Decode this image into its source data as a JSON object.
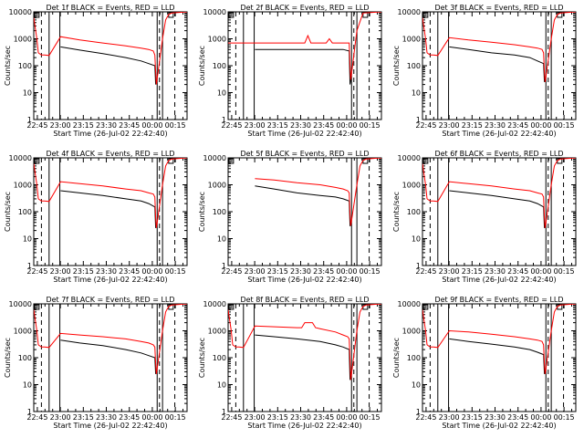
{
  "figure": {
    "ylabel": "Counts/sec",
    "xlabel": "Start Time (26-Jul-02 22:42:40)",
    "x_tick_labels": [
      "22:45",
      "23:00",
      "23:15",
      "23:30",
      "23:45",
      "00:00",
      "00:15"
    ],
    "y_tick_labels": [
      "1",
      "10",
      "100",
      "1000",
      "10000"
    ],
    "colors": {
      "events": "#000000",
      "lld": "#ff0000"
    }
  },
  "chart_data": [
    {
      "type": "line",
      "title": "Det 1f BLACK = Events, RED = LLD",
      "detector": "1f",
      "ylim": [
        1,
        10000
      ],
      "yscale": "log",
      "xlim_minutes": [
        0,
        100
      ],
      "gaps_minutes": [
        [
          10,
          17
        ],
        [
          80.5,
          84
        ]
      ],
      "dashed_minutes": [
        5,
        82,
        92
      ],
      "series": [
        {
          "name": "Events",
          "x": [
            17.5,
            30,
            45,
            60,
            70,
            75,
            79,
            79.5,
            80
          ],
          "y": [
            500,
            380,
            280,
            200,
            150,
            120,
            100,
            20,
            30
          ]
        },
        {
          "name": "LLD",
          "x": [
            0,
            1,
            2,
            3,
            5,
            7,
            10,
            17.5,
            30,
            45,
            60,
            70,
            75,
            78,
            79,
            79.5,
            80,
            84,
            86,
            88,
            90,
            100
          ],
          "y": [
            6000,
            2500,
            1000,
            300,
            250,
            250,
            240,
            1200,
            900,
            700,
            550,
            450,
            400,
            350,
            250,
            60,
            20,
            1000,
            5000,
            8000,
            9000,
            10000
          ]
        }
      ]
    },
    {
      "type": "line",
      "title": "Det 2f BLACK = Events, RED = LLD",
      "detector": "2f",
      "ylim": [
        1,
        10000
      ],
      "yscale": "log",
      "xlim_minutes": [
        0,
        100
      ],
      "gaps_minutes": [
        [
          10,
          17
        ],
        [
          80.5,
          84
        ]
      ],
      "dashed_minutes": [
        5,
        82,
        92
      ],
      "series": [
        {
          "name": "Events",
          "x": [
            17.5,
            30,
            45,
            60,
            70,
            75,
            79,
            79.5,
            80
          ],
          "y": [
            400,
            400,
            400,
            400,
            400,
            400,
            350,
            20,
            30
          ]
        },
        {
          "name": "LLD",
          "x": [
            0,
            5,
            10,
            17.5,
            45,
            50,
            52,
            54,
            60,
            64,
            66,
            68,
            79,
            79.5,
            80,
            84,
            88,
            100
          ],
          "y": [
            700,
            700,
            700,
            700,
            700,
            700,
            1300,
            700,
            700,
            700,
            1000,
            700,
            700,
            100,
            30,
            2000,
            9000,
            10000
          ]
        }
      ]
    },
    {
      "type": "line",
      "title": "Det 3f BLACK = Events, RED = LLD",
      "detector": "3f",
      "ylim": [
        1,
        10000
      ],
      "yscale": "log",
      "xlim_minutes": [
        0,
        100
      ],
      "gaps_minutes": [
        [
          10,
          17
        ],
        [
          80.5,
          84
        ]
      ],
      "dashed_minutes": [
        5,
        82,
        92
      ],
      "series": [
        {
          "name": "Events",
          "x": [
            17.5,
            30,
            45,
            60,
            70,
            75,
            79,
            79.5,
            80
          ],
          "y": [
            500,
            400,
            300,
            250,
            200,
            150,
            120,
            25,
            30
          ]
        },
        {
          "name": "LLD",
          "x": [
            0,
            1,
            2,
            3,
            5,
            7,
            10,
            17.5,
            30,
            45,
            60,
            70,
            75,
            78,
            79,
            79.5,
            80,
            84,
            86,
            88,
            90,
            100
          ],
          "y": [
            6000,
            2500,
            1000,
            300,
            250,
            250,
            240,
            1100,
            900,
            750,
            600,
            500,
            450,
            400,
            300,
            60,
            25,
            1000,
            5000,
            8000,
            9000,
            10000
          ]
        }
      ]
    },
    {
      "type": "line",
      "title": "Det 4f BLACK = Events, RED = LLD",
      "detector": "4f",
      "ylim": [
        1,
        10000
      ],
      "yscale": "log",
      "xlim_minutes": [
        0,
        100
      ],
      "gaps_minutes": [
        [
          10,
          17
        ],
        [
          80.5,
          84
        ]
      ],
      "dashed_minutes": [
        5,
        82,
        92
      ],
      "series": [
        {
          "name": "Events",
          "x": [
            17.5,
            30,
            45,
            60,
            70,
            75,
            79,
            79.5,
            80
          ],
          "y": [
            600,
            500,
            400,
            300,
            250,
            200,
            150,
            25,
            30
          ]
        },
        {
          "name": "LLD",
          "x": [
            0,
            1,
            2,
            3,
            5,
            7,
            10,
            17.5,
            30,
            45,
            60,
            70,
            75,
            78,
            79,
            79.5,
            80,
            84,
            86,
            88,
            90,
            100
          ],
          "y": [
            6000,
            2500,
            1000,
            300,
            250,
            250,
            240,
            1300,
            1100,
            900,
            700,
            600,
            500,
            450,
            350,
            60,
            25,
            1000,
            5000,
            8000,
            9000,
            10000
          ]
        }
      ]
    },
    {
      "type": "line",
      "title": "Det 5f BLACK = Events, RED = LLD",
      "detector": "5f",
      "ylim": [
        1,
        10000
      ],
      "yscale": "log",
      "xlim_minutes": [
        0,
        100
      ],
      "gaps_minutes": [
        [
          80.5,
          84
        ]
      ],
      "dashed_minutes": [
        92
      ],
      "series": [
        {
          "name": "Events",
          "x": [
            17.5,
            30,
            45,
            60,
            70,
            75,
            79,
            79.5,
            80
          ],
          "y": [
            900,
            700,
            500,
            400,
            350,
            300,
            250,
            30,
            30
          ]
        },
        {
          "name": "LLD",
          "x": [
            17.5,
            30,
            45,
            60,
            70,
            75,
            78,
            79,
            79.5,
            80,
            84,
            86,
            88,
            90,
            100
          ],
          "y": [
            1700,
            1500,
            1200,
            1000,
            800,
            700,
            600,
            500,
            80,
            30,
            1000,
            5000,
            8000,
            9000,
            10000
          ]
        }
      ]
    },
    {
      "type": "line",
      "title": "Det 6f BLACK = Events, RED = LLD",
      "detector": "6f",
      "ylim": [
        1,
        10000
      ],
      "yscale": "log",
      "xlim_minutes": [
        0,
        100
      ],
      "gaps_minutes": [
        [
          10,
          17
        ],
        [
          80.5,
          84
        ]
      ],
      "dashed_minutes": [
        5,
        82,
        92
      ],
      "series": [
        {
          "name": "Events",
          "x": [
            17.5,
            30,
            45,
            60,
            70,
            75,
            79,
            79.5,
            80
          ],
          "y": [
            600,
            500,
            400,
            300,
            250,
            200,
            150,
            25,
            30
          ]
        },
        {
          "name": "LLD",
          "x": [
            0,
            1,
            2,
            3,
            5,
            7,
            10,
            17.5,
            30,
            45,
            60,
            70,
            75,
            78,
            79,
            79.5,
            80,
            84,
            86,
            88,
            90,
            100
          ],
          "y": [
            6000,
            2500,
            1000,
            300,
            250,
            250,
            240,
            1300,
            1100,
            900,
            700,
            600,
            500,
            450,
            350,
            60,
            25,
            1000,
            5000,
            8000,
            9000,
            10000
          ]
        }
      ]
    },
    {
      "type": "line",
      "title": "Det 7f BLACK = Events, RED = LLD",
      "detector": "7f",
      "ylim": [
        1,
        10000
      ],
      "yscale": "log",
      "xlim_minutes": [
        0,
        100
      ],
      "gaps_minutes": [
        [
          10,
          17
        ],
        [
          80.5,
          84
        ]
      ],
      "dashed_minutes": [
        5,
        82,
        92
      ],
      "series": [
        {
          "name": "Events",
          "x": [
            17.5,
            30,
            45,
            60,
            70,
            75,
            79,
            79.5,
            80
          ],
          "y": [
            450,
            350,
            280,
            200,
            150,
            120,
            100,
            25,
            30
          ]
        },
        {
          "name": "LLD",
          "x": [
            0,
            1,
            2,
            3,
            5,
            7,
            10,
            17.5,
            30,
            45,
            60,
            70,
            75,
            78,
            79,
            79.5,
            80,
            84,
            86,
            88,
            90,
            100
          ],
          "y": [
            6000,
            2500,
            1000,
            300,
            250,
            250,
            240,
            800,
            700,
            600,
            500,
            400,
            350,
            300,
            250,
            60,
            25,
            1000,
            5000,
            8000,
            9000,
            10000
          ]
        }
      ]
    },
    {
      "type": "line",
      "title": "Det 8f BLACK = Events, RED = LLD",
      "detector": "8f",
      "ylim": [
        1,
        10000
      ],
      "yscale": "log",
      "xlim_minutes": [
        0,
        100
      ],
      "gaps_minutes": [
        [
          10,
          17
        ],
        [
          80.5,
          84
        ]
      ],
      "dashed_minutes": [
        5,
        82,
        92
      ],
      "series": [
        {
          "name": "Events",
          "x": [
            17.5,
            30,
            45,
            60,
            70,
            75,
            79,
            79.5,
            80
          ],
          "y": [
            700,
            600,
            500,
            400,
            300,
            250,
            200,
            15,
            30
          ]
        },
        {
          "name": "LLD",
          "x": [
            0,
            1,
            2,
            3,
            5,
            7,
            10,
            17.5,
            45,
            48,
            50,
            55,
            57,
            60,
            70,
            75,
            78,
            79,
            79.5,
            80,
            84,
            86,
            88,
            90,
            100
          ],
          "y": [
            6000,
            2500,
            1000,
            300,
            250,
            250,
            240,
            1500,
            1300,
            1300,
            2000,
            2000,
            1300,
            1200,
            900,
            700,
            600,
            500,
            80,
            15,
            1000,
            5000,
            8000,
            9000,
            10000
          ]
        }
      ]
    },
    {
      "type": "line",
      "title": "Det 9f BLACK = Events, RED = LLD",
      "detector": "9f",
      "ylim": [
        1,
        10000
      ],
      "yscale": "log",
      "xlim_minutes": [
        0,
        100
      ],
      "gaps_minutes": [
        [
          10,
          17
        ],
        [
          80.5,
          84
        ]
      ],
      "dashed_minutes": [
        5,
        82,
        92
      ],
      "series": [
        {
          "name": "Events",
          "x": [
            17.5,
            30,
            45,
            60,
            70,
            75,
            79,
            79.5,
            80
          ],
          "y": [
            500,
            400,
            320,
            250,
            200,
            160,
            130,
            25,
            30
          ]
        },
        {
          "name": "LLD",
          "x": [
            0,
            1,
            2,
            3,
            5,
            7,
            10,
            17.5,
            30,
            45,
            60,
            70,
            75,
            78,
            79,
            79.5,
            80,
            84,
            86,
            88,
            90,
            100
          ],
          "y": [
            6000,
            2500,
            1000,
            300,
            250,
            250,
            240,
            1000,
            900,
            750,
            600,
            500,
            450,
            400,
            300,
            60,
            25,
            1000,
            5000,
            8000,
            9000,
            10000
          ]
        }
      ]
    }
  ]
}
